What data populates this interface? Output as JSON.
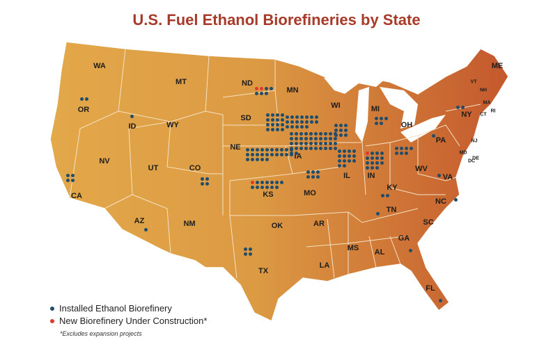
{
  "title": "U.S. Fuel Ethanol Biorefineries by State",
  "colors": {
    "map_west": "#e3a84a",
    "map_east": "#c4582d",
    "installed": "#1f4d6b",
    "new": "#e2372b",
    "title": "#a83a2a"
  },
  "legend": {
    "installed": "Installed Ethanol Biorefinery",
    "new": "New Biorefinery Under Construction*",
    "note": "*Excludes expansion projects"
  },
  "states": [
    {
      "abbr": "WA",
      "installed": 0,
      "new": 0
    },
    {
      "abbr": "OR",
      "installed": 2,
      "new": 0
    },
    {
      "abbr": "CA",
      "installed": 4,
      "new": 0
    },
    {
      "abbr": "ID",
      "installed": 1,
      "new": 0
    },
    {
      "abbr": "NV",
      "installed": 0,
      "new": 0
    },
    {
      "abbr": "MT",
      "installed": 0,
      "new": 0
    },
    {
      "abbr": "WY",
      "installed": 0,
      "new": 0
    },
    {
      "abbr": "UT",
      "installed": 0,
      "new": 0
    },
    {
      "abbr": "AZ",
      "installed": 1,
      "new": 0
    },
    {
      "abbr": "CO",
      "installed": 4,
      "new": 0
    },
    {
      "abbr": "NM",
      "installed": 0,
      "new": 0
    },
    {
      "abbr": "ND",
      "installed": 5,
      "new": 2
    },
    {
      "abbr": "SD",
      "installed": 16,
      "new": 0
    },
    {
      "abbr": "NE",
      "installed": 25,
      "new": 0
    },
    {
      "abbr": "KS",
      "installed": 12,
      "new": 1
    },
    {
      "abbr": "OK",
      "installed": 0,
      "new": 0
    },
    {
      "abbr": "TX",
      "installed": 4,
      "new": 0
    },
    {
      "abbr": "MN",
      "installed": 19,
      "new": 0
    },
    {
      "abbr": "IA",
      "installed": 42,
      "new": 0
    },
    {
      "abbr": "MO",
      "installed": 6,
      "new": 0
    },
    {
      "abbr": "AR",
      "installed": 0,
      "new": 0
    },
    {
      "abbr": "LA",
      "installed": 0,
      "new": 0
    },
    {
      "abbr": "WI",
      "installed": 9,
      "new": 0
    },
    {
      "abbr": "IL",
      "installed": 14,
      "new": 0
    },
    {
      "abbr": "MI",
      "installed": 5,
      "new": 0
    },
    {
      "abbr": "IN",
      "installed": 14,
      "new": 1
    },
    {
      "abbr": "OH",
      "installed": 7,
      "new": 0
    },
    {
      "abbr": "KY",
      "installed": 2,
      "new": 0
    },
    {
      "abbr": "TN",
      "installed": 1,
      "new": 0
    },
    {
      "abbr": "MS",
      "installed": 0,
      "new": 0
    },
    {
      "abbr": "AL",
      "installed": 0,
      "new": 0
    },
    {
      "abbr": "GA",
      "installed": 1,
      "new": 0
    },
    {
      "abbr": "FL",
      "installed": 1,
      "new": 0
    },
    {
      "abbr": "SC",
      "installed": 0,
      "new": 0
    },
    {
      "abbr": "NC",
      "installed": 1,
      "new": 0
    },
    {
      "abbr": "VA",
      "installed": 1,
      "new": 0
    },
    {
      "abbr": "WV",
      "installed": 0,
      "new": 0
    },
    {
      "abbr": "PA",
      "installed": 1,
      "new": 0
    },
    {
      "abbr": "NY",
      "installed": 2,
      "new": 0
    },
    {
      "abbr": "VT",
      "installed": 0,
      "new": 0
    },
    {
      "abbr": "NH",
      "installed": 0,
      "new": 0
    },
    {
      "abbr": "ME",
      "installed": 0,
      "new": 0
    },
    {
      "abbr": "MA",
      "installed": 0,
      "new": 0
    },
    {
      "abbr": "CT",
      "installed": 0,
      "new": 0
    },
    {
      "abbr": "RI",
      "installed": 0,
      "new": 0
    },
    {
      "abbr": "NJ",
      "installed": 0,
      "new": 0
    },
    {
      "abbr": "DE",
      "installed": 0,
      "new": 0
    },
    {
      "abbr": "MD",
      "installed": 0,
      "new": 0
    },
    {
      "abbr": "DC",
      "installed": 0,
      "new": 0
    }
  ]
}
